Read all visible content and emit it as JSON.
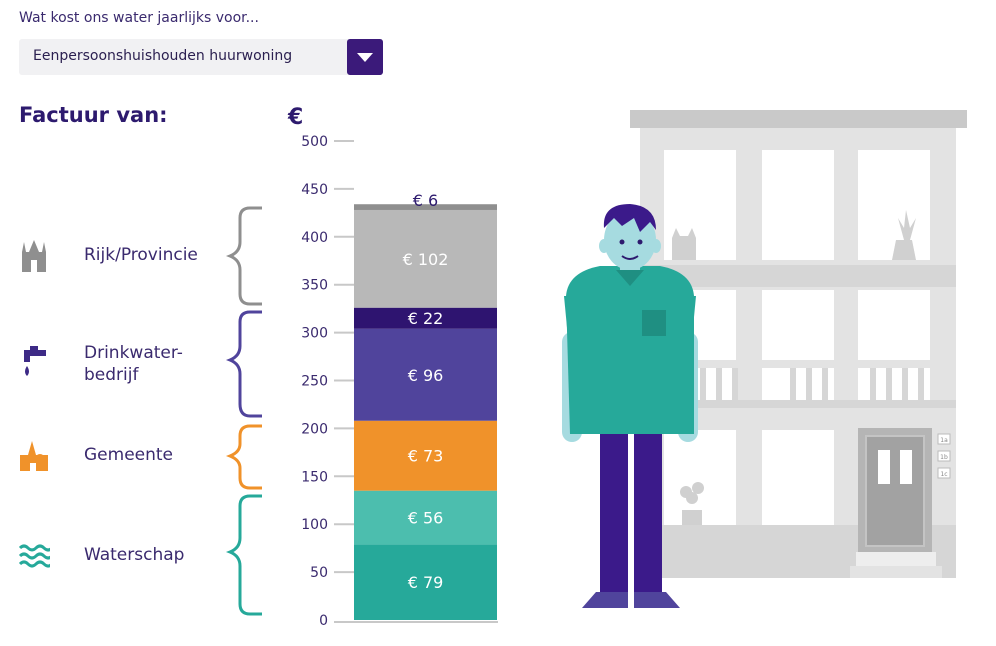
{
  "header": {
    "question": "Wat kost ons water jaarlijks voor...",
    "selected_household": "Eenpersoonshuishouden huurwoning"
  },
  "factuur_label": "Factuur van:",
  "categories": [
    {
      "label": "Rijk/Provincie",
      "icon": "church-icon",
      "color": "#8f8f8f"
    },
    {
      "label": "Drinkwater-\nbedrijf",
      "icon": "water-tap-icon",
      "color": "#50449c"
    },
    {
      "label": "Gemeente",
      "icon": "town-hall-icon",
      "color": "#f0922a"
    },
    {
      "label": "Waterschap",
      "icon": "waves-icon",
      "color": "#26a99a"
    }
  ],
  "chart_data": {
    "type": "bar",
    "stacked": true,
    "currency_label": "€",
    "ylim": [
      0,
      500
    ],
    "yticks": [
      0,
      50,
      100,
      150,
      200,
      250,
      300,
      350,
      400,
      450,
      500
    ],
    "segments": [
      {
        "label": "€ 79",
        "value": 79,
        "group": "Waterschap",
        "color": "#26a99a"
      },
      {
        "label": "€ 56",
        "value": 56,
        "group": "Waterschap",
        "color": "#4cbeae"
      },
      {
        "label": "€ 73",
        "value": 73,
        "group": "Gemeente",
        "color": "#f0922a"
      },
      {
        "label": "€ 96",
        "value": 96,
        "group": "Drinkwaterbedrijf",
        "color": "#50449c"
      },
      {
        "label": "€ 22",
        "value": 22,
        "group": "Drinkwaterbedrijf",
        "color": "#2e1470"
      },
      {
        "label": "€ 102",
        "value": 102,
        "group": "Rijk/Provincie",
        "color": "#b8b8b8"
      },
      {
        "label": "€ 6",
        "value": 6,
        "group": "Rijk/Provincie",
        "color": "#8f8f8f"
      }
    ]
  },
  "door_numbers": [
    "1a",
    "1b",
    "1c"
  ]
}
